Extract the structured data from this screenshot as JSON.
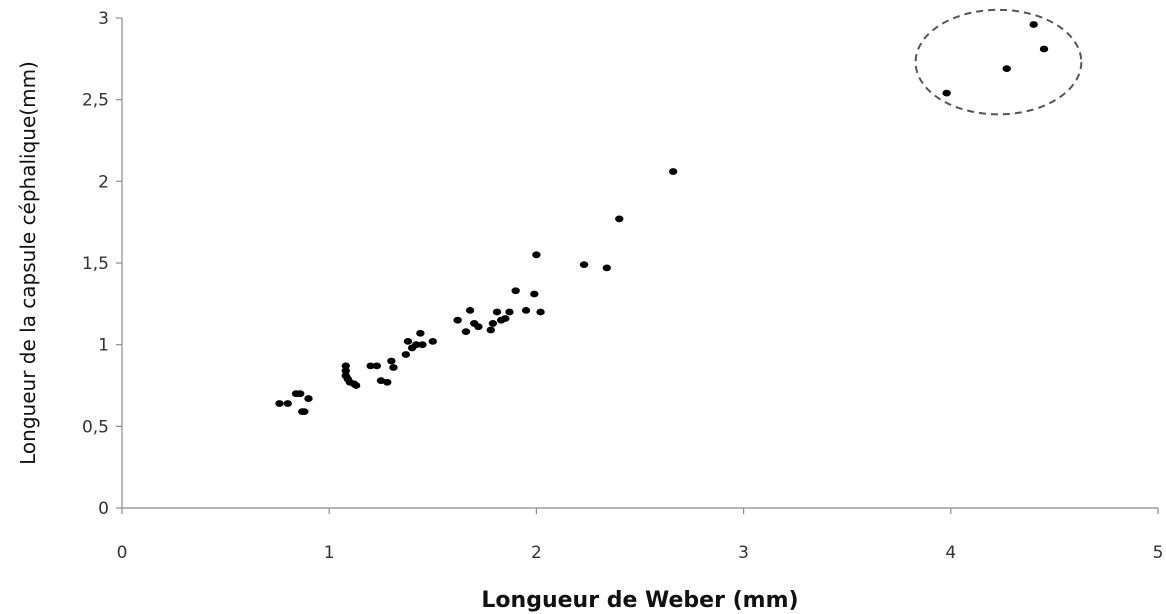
{
  "chart_data": {
    "type": "scatter",
    "title": "",
    "xlabel": "Longueur de Weber (mm)",
    "ylabel": "Longueur de la capsule céphalique(mm)",
    "xlim": [
      0,
      5
    ],
    "ylim": [
      0,
      3
    ],
    "x_ticks": [
      "0",
      "1",
      "2",
      "3",
      "4",
      "5"
    ],
    "y_ticks": [
      "0",
      "0,5",
      "1",
      "1,5",
      "2",
      "2,5",
      "3"
    ],
    "grid": false,
    "legend": "none",
    "point_color": "#000000",
    "points": [
      {
        "x": 0.76,
        "y": 0.64
      },
      {
        "x": 0.8,
        "y": 0.64
      },
      {
        "x": 0.84,
        "y": 0.7
      },
      {
        "x": 0.86,
        "y": 0.7
      },
      {
        "x": 0.87,
        "y": 0.59
      },
      {
        "x": 0.88,
        "y": 0.59
      },
      {
        "x": 0.9,
        "y": 0.67
      },
      {
        "x": 1.08,
        "y": 0.87
      },
      {
        "x": 1.08,
        "y": 0.84
      },
      {
        "x": 1.08,
        "y": 0.81
      },
      {
        "x": 1.09,
        "y": 0.79
      },
      {
        "x": 1.1,
        "y": 0.77
      },
      {
        "x": 1.12,
        "y": 0.76
      },
      {
        "x": 1.13,
        "y": 0.75
      },
      {
        "x": 1.2,
        "y": 0.87
      },
      {
        "x": 1.23,
        "y": 0.87
      },
      {
        "x": 1.25,
        "y": 0.78
      },
      {
        "x": 1.28,
        "y": 0.77
      },
      {
        "x": 1.3,
        "y": 0.9
      },
      {
        "x": 1.31,
        "y": 0.86
      },
      {
        "x": 1.37,
        "y": 0.94
      },
      {
        "x": 1.38,
        "y": 1.02
      },
      {
        "x": 1.4,
        "y": 0.98
      },
      {
        "x": 1.42,
        "y": 1.0
      },
      {
        "x": 1.44,
        "y": 1.07
      },
      {
        "x": 1.45,
        "y": 1.0
      },
      {
        "x": 1.5,
        "y": 1.02
      },
      {
        "x": 1.62,
        "y": 1.15
      },
      {
        "x": 1.66,
        "y": 1.08
      },
      {
        "x": 1.68,
        "y": 1.21
      },
      {
        "x": 1.7,
        "y": 1.13
      },
      {
        "x": 1.72,
        "y": 1.11
      },
      {
        "x": 1.78,
        "y": 1.09
      },
      {
        "x": 1.79,
        "y": 1.13
      },
      {
        "x": 1.81,
        "y": 1.2
      },
      {
        "x": 1.83,
        "y": 1.15
      },
      {
        "x": 1.85,
        "y": 1.16
      },
      {
        "x": 1.87,
        "y": 1.2
      },
      {
        "x": 1.9,
        "y": 1.33
      },
      {
        "x": 1.95,
        "y": 1.21
      },
      {
        "x": 1.99,
        "y": 1.31
      },
      {
        "x": 2.0,
        "y": 1.55
      },
      {
        "x": 2.02,
        "y": 1.2
      },
      {
        "x": 2.23,
        "y": 1.49
      },
      {
        "x": 2.34,
        "y": 1.47
      },
      {
        "x": 2.4,
        "y": 1.77
      },
      {
        "x": 2.66,
        "y": 2.06
      },
      {
        "x": 3.98,
        "y": 2.54
      },
      {
        "x": 4.27,
        "y": 2.69
      },
      {
        "x": 4.4,
        "y": 2.96
      },
      {
        "x": 4.45,
        "y": 2.81
      }
    ],
    "annotations": [
      {
        "type": "dashed-ellipse",
        "encloses": "outlier-points",
        "center": {
          "x": 4.23,
          "y": 2.73
        },
        "radius_x": 0.4,
        "radius_y": 0.32
      }
    ]
  }
}
